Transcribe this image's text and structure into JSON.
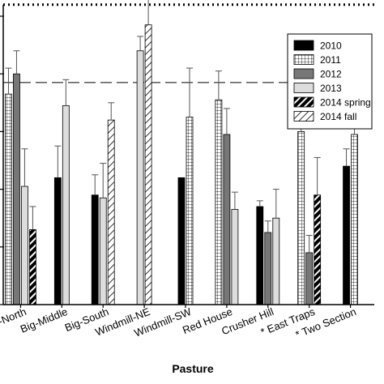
{
  "chart_data": {
    "type": "bar",
    "title": "",
    "xlabel": "Pasture",
    "ylabel": "",
    "ylim": [
      0,
      1.0
    ],
    "grid": false,
    "legend_position": "top-right",
    "categories": [
      "Big-North",
      "Big-Middle",
      "Big-South",
      "Windmill-NE",
      "Windmill-SW",
      "Red House",
      "Crusher Hill",
      "East Traps",
      "Two Section"
    ],
    "category_labels": [
      "Big-North",
      "Big-Middle",
      "Big-South",
      "Windmill-NE",
      "Windmill-SW",
      "Red House",
      "Crusher Hill",
      "* East Traps",
      "* Two Section"
    ],
    "series": [
      {
        "name": "2010",
        "fill": "#000000",
        "pattern": "solid",
        "values": [
          null,
          0.44,
          0.38,
          null,
          0.44,
          null,
          0.34,
          null,
          0.48
        ],
        "errors": [
          null,
          0.11,
          0.07,
          null,
          null,
          null,
          0.02,
          null,
          0.06
        ]
      },
      {
        "name": "2011",
        "fill": "#ffffff",
        "pattern": "grid",
        "values": [
          0.73,
          null,
          null,
          null,
          0.65,
          0.71,
          null,
          0.6,
          0.59
        ],
        "errors": [
          0.09,
          null,
          null,
          null,
          0.17,
          0.1,
          null,
          0.07,
          0.04
        ]
      },
      {
        "name": "2012",
        "fill": "#777777",
        "pattern": "solid",
        "values": [
          0.8,
          null,
          null,
          null,
          null,
          0.59,
          0.25,
          0.18,
          null
        ],
        "errors": [
          0.08,
          null,
          null,
          null,
          null,
          0.09,
          0.04,
          0.06,
          null
        ]
      },
      {
        "name": "2013",
        "fill": "#dddddd",
        "pattern": "solid",
        "values": [
          0.41,
          0.69,
          0.37,
          0.88,
          null,
          0.33,
          0.3,
          null,
          null
        ],
        "errors": [
          0.13,
          0.09,
          0.12,
          0.05,
          null,
          0.06,
          0.1,
          null,
          null
        ]
      },
      {
        "name": "2014 spring",
        "fill": "#000000",
        "pattern": "diagonal-thick",
        "values": [
          0.26,
          null,
          null,
          null,
          null,
          null,
          null,
          0.38,
          null
        ],
        "errors": [
          0.08,
          null,
          null,
          null,
          null,
          null,
          null,
          0.13,
          null
        ]
      },
      {
        "name": "2014 fall",
        "fill": "#ffffff",
        "pattern": "diagonal-thin",
        "values": [
          null,
          null,
          0.64,
          0.97,
          null,
          null,
          null,
          null,
          null
        ],
        "errors": [
          null,
          null,
          0.06,
          0.14,
          null,
          null,
          null,
          null,
          null
        ]
      }
    ],
    "reference_lines": [
      {
        "style": "dotted",
        "value": 1.04
      },
      {
        "style": "dashed",
        "value": 0.77
      }
    ],
    "colors": {
      "axis": "#000000",
      "error_bar": "#555555"
    }
  }
}
